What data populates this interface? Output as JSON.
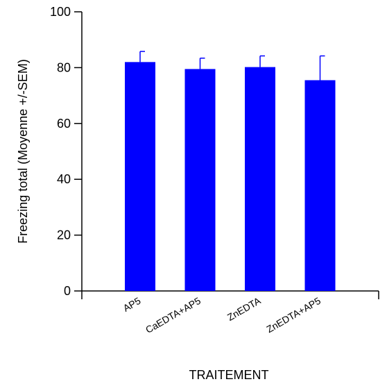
{
  "chart_data": {
    "type": "bar",
    "title": "",
    "xlabel": "TRAITEMENT",
    "ylabel": "Freezing total (Moyenne +/-SEM)",
    "categories": [
      "AP5",
      "CaEDTA+AP5",
      "ZnEDTA",
      "ZnEDTA+AP5"
    ],
    "series": [
      {
        "values": [
          82,
          79.5,
          80.2,
          75.5
        ],
        "error": [
          3.8,
          3.9,
          4.0,
          8.7
        ],
        "color": "#0000ff"
      }
    ],
    "ylim": [
      0,
      100
    ],
    "yticks": [
      0,
      20,
      40,
      60,
      80,
      100
    ],
    "ytick_labels": [
      "0",
      "20",
      "40",
      "60",
      "80",
      "100"
    ],
    "grid": false,
    "legend": "none"
  }
}
